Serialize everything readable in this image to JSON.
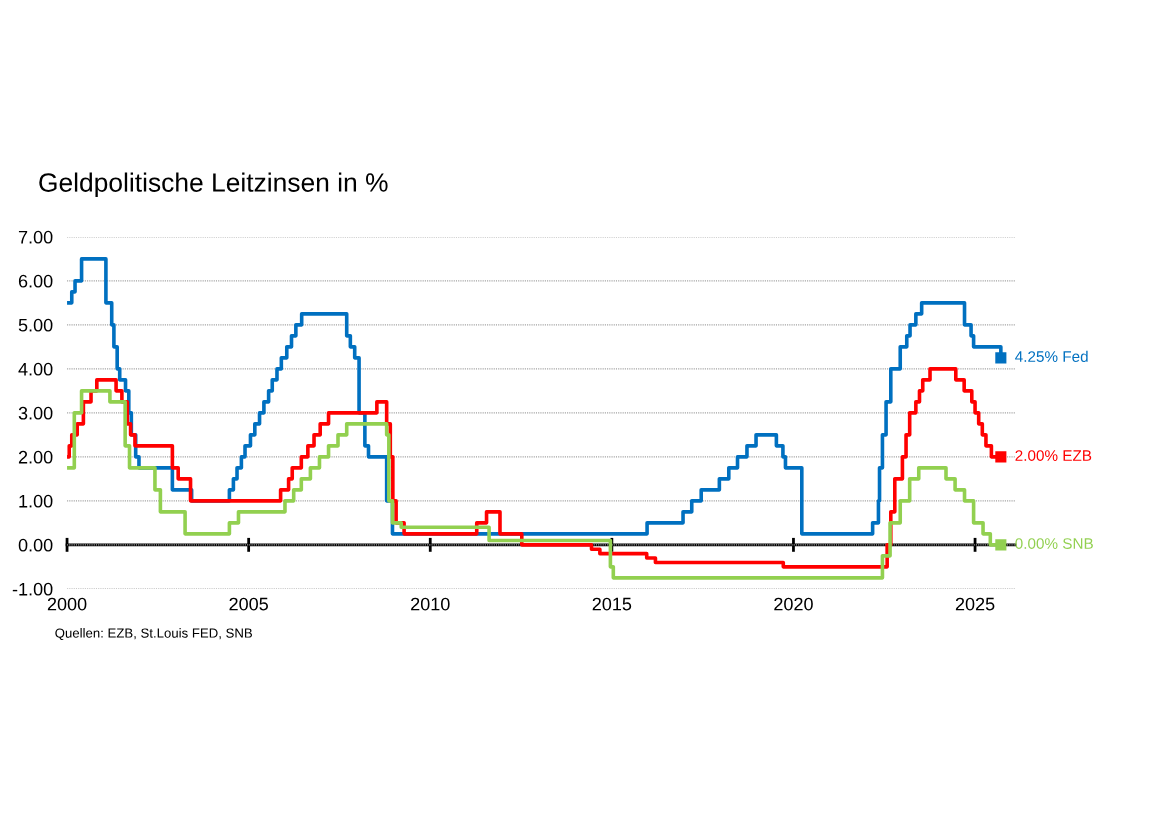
{
  "chart_data": {
    "type": "step",
    "title": "Geldpolitische Leitzinsen in %",
    "annotations": [
      "Quellen: EZB, St.Louis FED, SNB"
    ],
    "xlim": [
      2000,
      2026.1
    ],
    "xticks": [
      2000,
      2005,
      2010,
      2015,
      2020,
      2025
    ],
    "ylim": [
      -1,
      7
    ],
    "yticks": [
      {
        "value": -1,
        "label": "-1.00"
      },
      {
        "value": 0,
        "label": "0.00"
      },
      {
        "value": 1,
        "label": "1.00"
      },
      {
        "value": 2,
        "label": "2.00"
      },
      {
        "value": 3,
        "label": "3.00"
      },
      {
        "value": 4,
        "label": "4.00"
      },
      {
        "value": 5,
        "label": "5.00"
      },
      {
        "value": 6,
        "label": "6.00"
      },
      {
        "value": 7,
        "label": "7.00"
      }
    ],
    "grid": "y",
    "legend": false,
    "line_style": "solid",
    "series": [
      {
        "name": "4.25% Fed",
        "color": "#0070c0",
        "x": [
          2000.0,
          2000.13,
          2000.22,
          2000.4,
          2001.07,
          2001.23,
          2001.29,
          2001.38,
          2001.45,
          2001.61,
          2001.7,
          2001.77,
          2001.89,
          2001.98,
          2002.9,
          2003.43,
          2004.47,
          2004.58,
          2004.68,
          2004.8,
          2004.9,
          2005.05,
          2005.17,
          2005.3,
          2005.42,
          2005.55,
          2005.65,
          2005.78,
          2005.9,
          2006.05,
          2006.18,
          2006.3,
          2006.46,
          2007.7,
          2007.8,
          2007.92,
          2008.04,
          2008.07,
          2008.2,
          2008.3,
          2008.8,
          2008.96,
          2015.97,
          2016.96,
          2017.2,
          2017.46,
          2017.96,
          2018.22,
          2018.46,
          2018.72,
          2018.97,
          2019.53,
          2019.71,
          2019.78,
          2020.23,
          2022.18,
          2022.34,
          2022.37,
          2022.45,
          2022.55,
          2022.68,
          2022.94,
          2023.12,
          2023.21,
          2023.37,
          2023.53,
          2024.71,
          2024.89,
          2024.96,
          2025.71
        ],
        "values": [
          5.5,
          5.75,
          6.0,
          6.5,
          5.5,
          5.0,
          4.5,
          4.0,
          3.75,
          3.5,
          3.0,
          2.5,
          2.0,
          1.75,
          1.25,
          1.0,
          1.25,
          1.5,
          1.75,
          2.0,
          2.25,
          2.5,
          2.75,
          3.0,
          3.25,
          3.5,
          3.75,
          4.0,
          4.25,
          4.5,
          4.75,
          5.0,
          5.25,
          4.75,
          4.5,
          4.25,
          3.0,
          3.0,
          2.25,
          2.0,
          1.0,
          0.25,
          0.5,
          0.75,
          1.0,
          1.25,
          1.5,
          1.75,
          2.0,
          2.25,
          2.5,
          2.25,
          2.0,
          1.75,
          0.25,
          0.5,
          1.0,
          1.75,
          2.5,
          3.25,
          4.0,
          4.5,
          4.75,
          5.0,
          5.25,
          5.5,
          5.0,
          4.75,
          4.5,
          4.25
        ]
      },
      {
        "name": "2.00% EZB",
        "color": "#ff0000",
        "x": [
          2000.0,
          2000.06,
          2000.13,
          2000.28,
          2000.45,
          2000.66,
          2000.82,
          2001.35,
          2001.51,
          2001.66,
          2001.75,
          2001.87,
          2002.9,
          2003.06,
          2003.4,
          2005.88,
          2006.1,
          2006.2,
          2006.45,
          2006.63,
          2006.8,
          2006.97,
          2007.2,
          2008.53,
          2008.8,
          2008.9,
          2008.97,
          2009.06,
          2009.28,
          2011.28,
          2011.55,
          2011.92,
          2012.52,
          2014.44,
          2014.67,
          2015.96,
          2016.2,
          2019.72,
          2022.58,
          2022.68,
          2022.79,
          2023.0,
          2023.1,
          2023.2,
          2023.37,
          2023.47,
          2023.56,
          2023.76,
          2024.47,
          2024.7,
          2024.91,
          2025.0,
          2025.1,
          2025.2,
          2025.3,
          2025.45,
          2025.71
        ],
        "values": [
          2.0,
          2.25,
          2.5,
          2.75,
          3.25,
          3.5,
          3.75,
          3.5,
          3.25,
          2.75,
          2.5,
          2.25,
          1.75,
          1.5,
          1.0,
          1.25,
          1.5,
          1.75,
          2.0,
          2.25,
          2.5,
          2.75,
          3.0,
          3.25,
          2.75,
          2.0,
          1.0,
          0.5,
          0.25,
          0.5,
          0.75,
          0.25,
          0.0,
          -0.1,
          -0.2,
          -0.3,
          -0.4,
          -0.5,
          0.0,
          0.75,
          1.5,
          2.0,
          2.5,
          3.0,
          3.25,
          3.5,
          3.75,
          4.0,
          3.75,
          3.5,
          3.25,
          3.0,
          2.75,
          2.5,
          2.25,
          2.0,
          2.0
        ]
      },
      {
        "name": "0.00% SNB",
        "color": "#92d050",
        "x": [
          2000.0,
          2000.2,
          2000.4,
          2001.18,
          2001.6,
          2001.72,
          2001.92,
          2002.42,
          2002.57,
          2003.25,
          2004.47,
          2004.72,
          2006.0,
          2006.24,
          2006.45,
          2006.7,
          2006.95,
          2007.2,
          2007.46,
          2007.7,
          2008.8,
          2008.86,
          2008.96,
          2009.2,
          2011.62,
          2014.96,
          2015.04,
          2022.45,
          2022.66,
          2022.94,
          2023.2,
          2023.45,
          2024.2,
          2024.45,
          2024.71,
          2024.96,
          2025.22,
          2025.42,
          2025.71
        ],
        "values": [
          1.75,
          3.0,
          3.5,
          3.25,
          2.25,
          1.75,
          1.75,
          1.25,
          0.75,
          0.25,
          0.5,
          0.75,
          1.0,
          1.25,
          1.5,
          1.75,
          2.0,
          2.25,
          2.5,
          2.75,
          2.5,
          1.0,
          0.5,
          0.4,
          0.1,
          -0.5,
          -0.75,
          -0.25,
          0.5,
          1.0,
          1.5,
          1.75,
          1.5,
          1.25,
          1.0,
          0.5,
          0.25,
          0.0,
          0.0
        ]
      }
    ]
  }
}
